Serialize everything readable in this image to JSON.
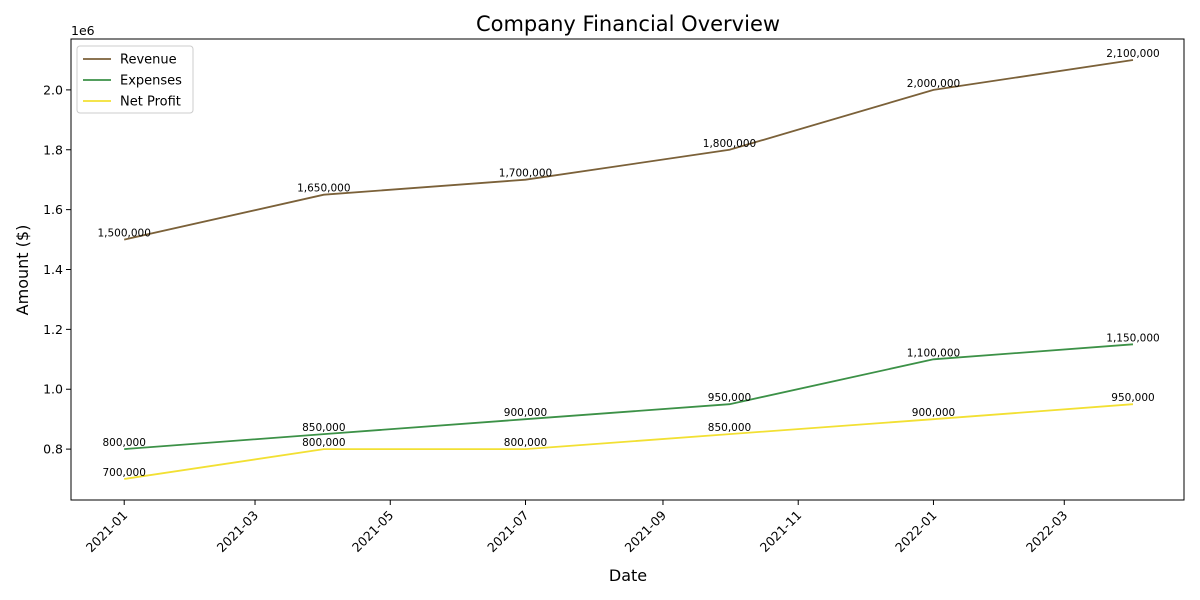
{
  "chart_data": {
    "type": "line",
    "title": "Company Financial Overview",
    "xlabel": "Date",
    "ylabel": "Amount ($)",
    "y_offset_text": "1e6",
    "x": [
      "2021-01-01",
      "2021-04-01",
      "2021-07-01",
      "2021-10-01",
      "2022-01-01",
      "2022-04-01"
    ],
    "x_ticks": [
      "2021-01",
      "2021-03",
      "2021-05",
      "2021-07",
      "2021-09",
      "2021-11",
      "2022-01",
      "2022-03"
    ],
    "y_ticks": [
      "0.8",
      "1.0",
      "1.2",
      "1.4",
      "1.6",
      "1.8",
      "2.0"
    ],
    "y_tick_values": [
      800000,
      1000000,
      1200000,
      1400000,
      1600000,
      1800000,
      2000000
    ],
    "xlim": [
      "2020-12-08",
      "2022-04-24"
    ],
    "ylim": [
      630000,
      2170000
    ],
    "grid": false,
    "legend_position": "top-left",
    "series": [
      {
        "name": "Revenue",
        "color": "#7b6139",
        "values": [
          1500000,
          1650000,
          1700000,
          1800000,
          2000000,
          2100000
        ],
        "labels": [
          "1,500,000",
          "1,650,000",
          "1,700,000",
          "1,800,000",
          "2,000,000",
          "2,100,000"
        ]
      },
      {
        "name": "Expenses",
        "color": "#3c9147",
        "values": [
          800000,
          850000,
          900000,
          950000,
          1100000,
          1150000
        ],
        "labels": [
          "800,000",
          "850,000",
          "900,000",
          "950,000",
          "1,100,000",
          "1,150,000"
        ]
      },
      {
        "name": "Net Profit",
        "color": "#f2e033",
        "values": [
          700000,
          800000,
          800000,
          850000,
          900000,
          950000
        ],
        "labels": [
          "700,000",
          "800,000",
          "800,000",
          "850,000",
          "900,000",
          "950,000"
        ]
      }
    ]
  }
}
